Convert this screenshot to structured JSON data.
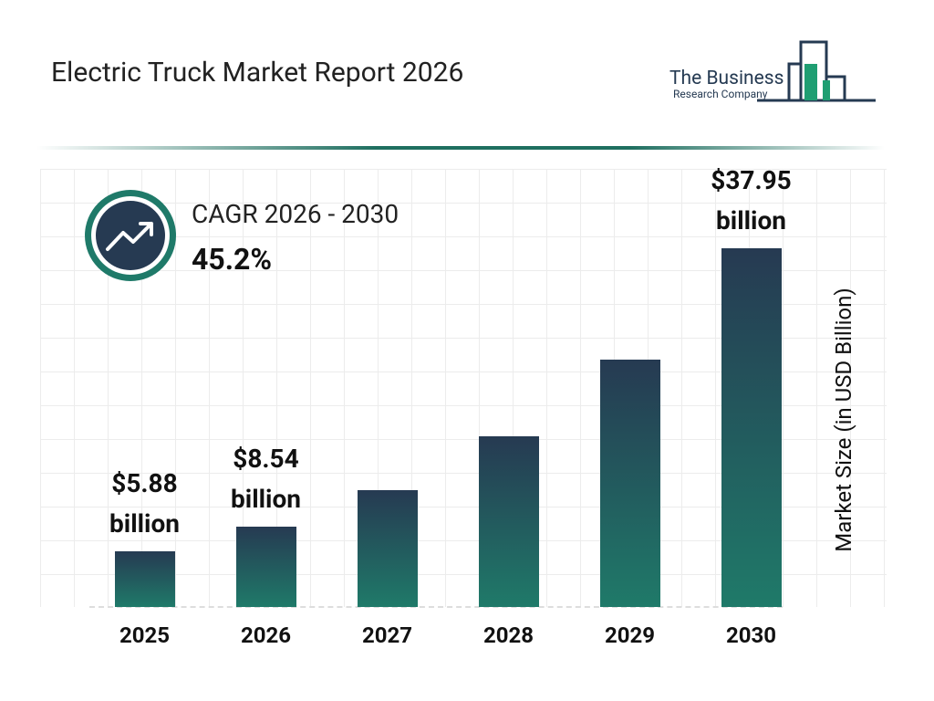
{
  "header": {
    "title": "Electric Truck Market Report 2026",
    "logo_line1": "The Business",
    "logo_line2": "Research Company"
  },
  "cagr": {
    "label": "CAGR 2026 - 2030",
    "value": "45.2%"
  },
  "chart_data": {
    "type": "bar",
    "categories": [
      "2025",
      "2026",
      "2027",
      "2028",
      "2029",
      "2030"
    ],
    "values": [
      5.88,
      8.54,
      12.4,
      18.01,
      26.15,
      37.95
    ],
    "value_labels": [
      "$5.88 billion",
      "$8.54 billion",
      null,
      null,
      null,
      "$37.95 billion"
    ],
    "y_axis_label": "Market Size (in USD Billion)",
    "color_top": "#263a52",
    "color_bottom": "#1f7a69"
  }
}
